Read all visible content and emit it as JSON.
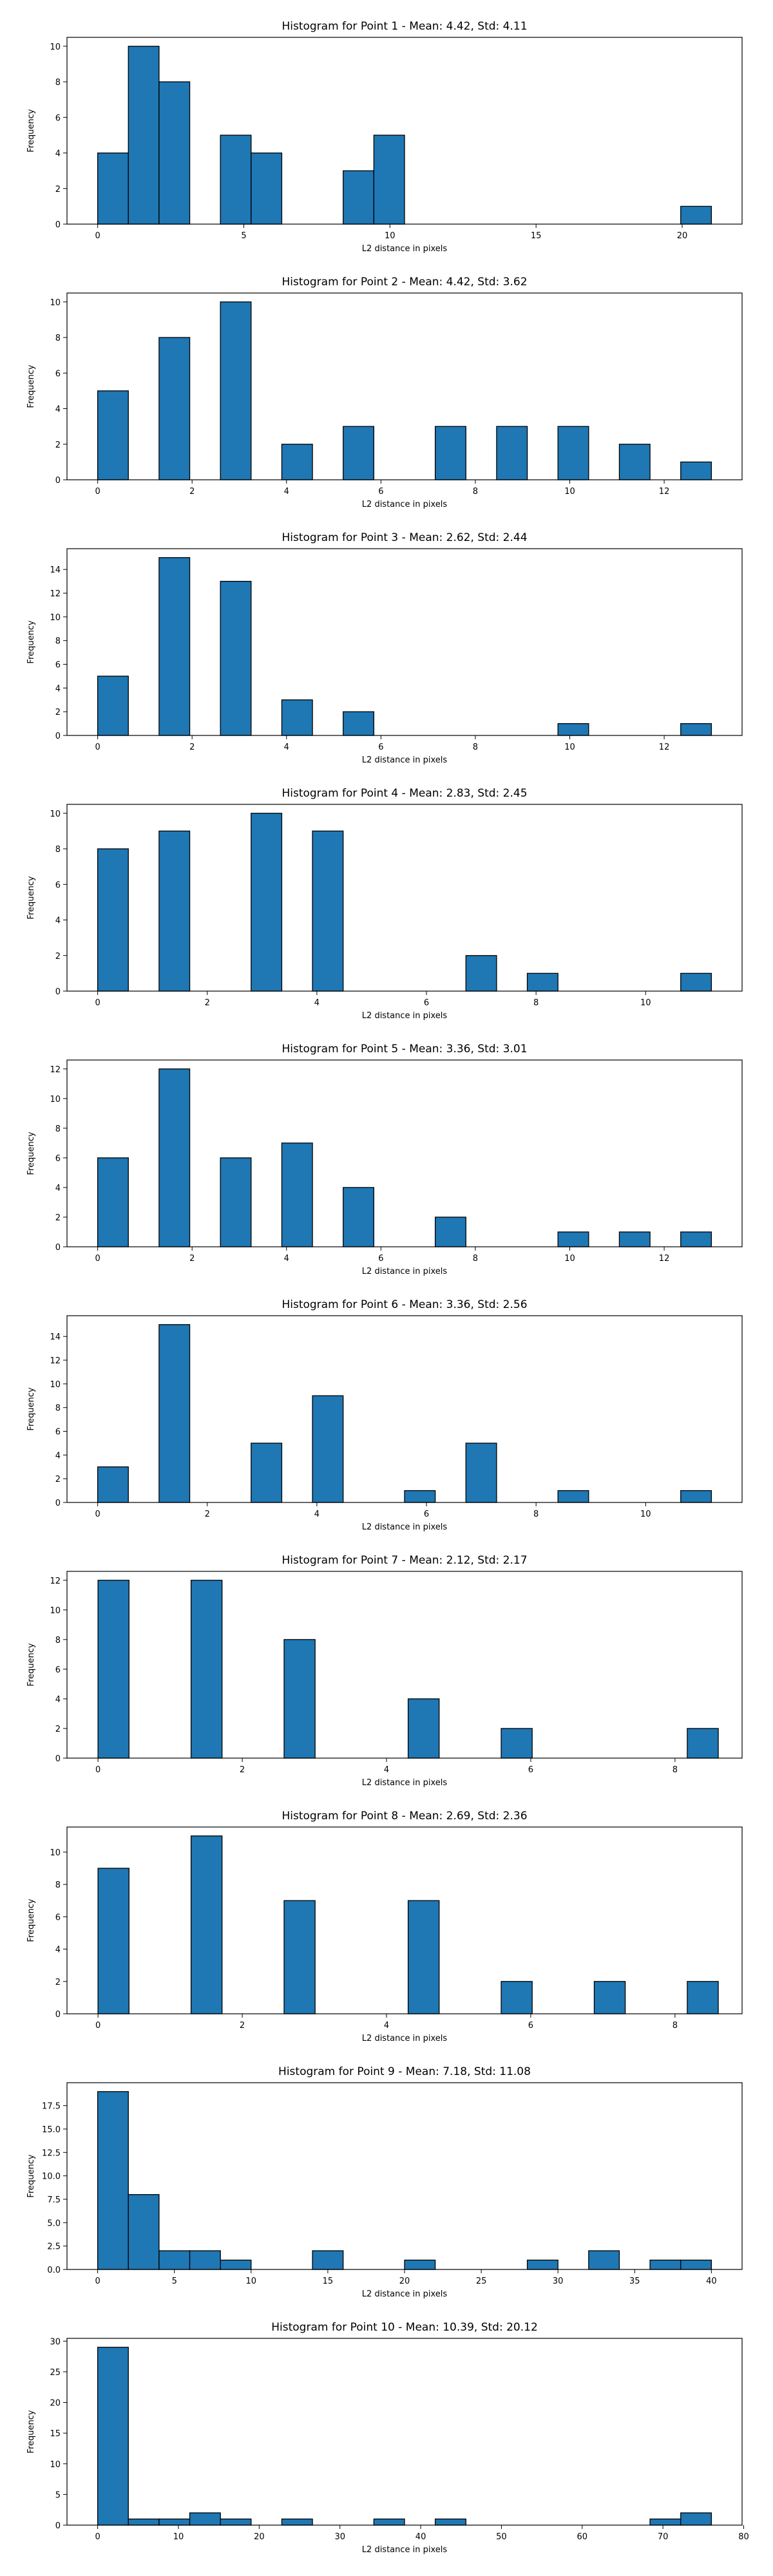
{
  "chart_data": [
    {
      "type": "bar",
      "title": "Histogram for Point 1 - Mean: 4.42, Std: 4.11",
      "xlabel": "L2 distance in pixels",
      "ylabel": "Frequency",
      "xlim": [
        -1.05,
        22.05
      ],
      "ylim": [
        0,
        10.5
      ],
      "xticks": [
        0,
        5,
        10,
        15,
        20
      ],
      "xtick_labels": [
        "0",
        "5",
        "10",
        "15",
        "20"
      ],
      "yticks": [
        0,
        2,
        4,
        6,
        8,
        10
      ],
      "ytick_labels": [
        "0",
        "2",
        "4",
        "6",
        "8",
        "10"
      ],
      "bin_width": 1.05,
      "bar_color": "#1f77b4",
      "bins": [
        {
          "x": 0,
          "count": 4
        },
        {
          "x": 1.05,
          "count": 10
        },
        {
          "x": 2.1,
          "count": 8
        },
        {
          "x": 4.2,
          "count": 5
        },
        {
          "x": 5.25,
          "count": 4
        },
        {
          "x": 8.4,
          "count": 3
        },
        {
          "x": 9.45,
          "count": 5
        },
        {
          "x": 19.95,
          "count": 1
        }
      ]
    },
    {
      "type": "bar",
      "title": "Histogram for Point 2 - Mean: 4.42, Std: 3.62",
      "xlabel": "L2 distance in pixels",
      "ylabel": "Frequency",
      "xlim": [
        -0.65,
        13.65
      ],
      "ylim": [
        0,
        10.5
      ],
      "xticks": [
        0,
        2,
        4,
        6,
        8,
        10,
        12
      ],
      "xtick_labels": [
        "0",
        "2",
        "4",
        "6",
        "8",
        "10",
        "12"
      ],
      "yticks": [
        0,
        2,
        4,
        6,
        8,
        10
      ],
      "ytick_labels": [
        "0",
        "2",
        "4",
        "6",
        "8",
        "10"
      ],
      "bin_width": 0.65,
      "bar_color": "#1f77b4",
      "bins": [
        {
          "x": 0,
          "count": 5
        },
        {
          "x": 1.3,
          "count": 8
        },
        {
          "x": 2.6,
          "count": 10
        },
        {
          "x": 3.9,
          "count": 2
        },
        {
          "x": 5.2,
          "count": 3
        },
        {
          "x": 7.15,
          "count": 3
        },
        {
          "x": 8.45,
          "count": 3
        },
        {
          "x": 9.75,
          "count": 3
        },
        {
          "x": 11.05,
          "count": 2
        },
        {
          "x": 12.35,
          "count": 1
        }
      ]
    },
    {
      "type": "bar",
      "title": "Histogram for Point 3 - Mean: 2.62, Std: 2.44",
      "xlabel": "L2 distance in pixels",
      "ylabel": "Frequency",
      "xlim": [
        -0.65,
        13.65
      ],
      "ylim": [
        0,
        15.75
      ],
      "xticks": [
        0,
        2,
        4,
        6,
        8,
        10,
        12
      ],
      "xtick_labels": [
        "0",
        "2",
        "4",
        "6",
        "8",
        "10",
        "12"
      ],
      "yticks": [
        0,
        2,
        4,
        6,
        8,
        10,
        12,
        14
      ],
      "ytick_labels": [
        "0",
        "2",
        "4",
        "6",
        "8",
        "10",
        "12",
        "14"
      ],
      "bin_width": 0.65,
      "bar_color": "#1f77b4",
      "bins": [
        {
          "x": 0,
          "count": 5
        },
        {
          "x": 1.3,
          "count": 15
        },
        {
          "x": 2.6,
          "count": 13
        },
        {
          "x": 3.9,
          "count": 3
        },
        {
          "x": 5.2,
          "count": 2
        },
        {
          "x": 9.75,
          "count": 1
        },
        {
          "x": 12.35,
          "count": 1
        }
      ]
    },
    {
      "type": "bar",
      "title": "Histogram for Point 4 - Mean: 2.83, Std: 2.45",
      "xlabel": "L2 distance in pixels",
      "ylabel": "Frequency",
      "xlim": [
        -0.56,
        11.76
      ],
      "ylim": [
        0,
        10.5
      ],
      "xticks": [
        0,
        2,
        4,
        6,
        8,
        10
      ],
      "xtick_labels": [
        "0",
        "2",
        "4",
        "6",
        "8",
        "10"
      ],
      "yticks": [
        0,
        2,
        4,
        6,
        8,
        10
      ],
      "ytick_labels": [
        "0",
        "2",
        "4",
        "6",
        "8",
        "10"
      ],
      "bin_width": 0.56,
      "bar_color": "#1f77b4",
      "bins": [
        {
          "x": 0,
          "count": 8
        },
        {
          "x": 1.12,
          "count": 9
        },
        {
          "x": 2.8,
          "count": 10
        },
        {
          "x": 3.92,
          "count": 9
        },
        {
          "x": 6.72,
          "count": 2
        },
        {
          "x": 7.84,
          "count": 1
        },
        {
          "x": 10.64,
          "count": 1
        }
      ]
    },
    {
      "type": "bar",
      "title": "Histogram for Point 5 - Mean: 3.36, Std: 3.01",
      "xlabel": "L2 distance in pixels",
      "ylabel": "Frequency",
      "xlim": [
        -0.65,
        13.65
      ],
      "ylim": [
        0,
        12.6
      ],
      "xticks": [
        0,
        2,
        4,
        6,
        8,
        10,
        12
      ],
      "xtick_labels": [
        "0",
        "2",
        "4",
        "6",
        "8",
        "10",
        "12"
      ],
      "yticks": [
        0,
        2,
        4,
        6,
        8,
        10,
        12
      ],
      "ytick_labels": [
        "0",
        "2",
        "4",
        "6",
        "8",
        "10",
        "12"
      ],
      "bin_width": 0.65,
      "bar_color": "#1f77b4",
      "bins": [
        {
          "x": 0,
          "count": 6
        },
        {
          "x": 1.3,
          "count": 12
        },
        {
          "x": 2.6,
          "count": 6
        },
        {
          "x": 3.9,
          "count": 7
        },
        {
          "x": 5.2,
          "count": 4
        },
        {
          "x": 7.15,
          "count": 2
        },
        {
          "x": 9.75,
          "count": 1
        },
        {
          "x": 11.05,
          "count": 1
        },
        {
          "x": 12.35,
          "count": 1
        }
      ]
    },
    {
      "type": "bar",
      "title": "Histogram for Point 6 - Mean: 3.36, Std: 2.56",
      "xlabel": "L2 distance in pixels",
      "ylabel": "Frequency",
      "xlim": [
        -0.56,
        11.76
      ],
      "ylim": [
        0,
        15.75
      ],
      "xticks": [
        0,
        2,
        4,
        6,
        8,
        10
      ],
      "xtick_labels": [
        "0",
        "2",
        "4",
        "6",
        "8",
        "10"
      ],
      "yticks": [
        0,
        2,
        4,
        6,
        8,
        10,
        12,
        14
      ],
      "ytick_labels": [
        "0",
        "2",
        "4",
        "6",
        "8",
        "10",
        "12",
        "14"
      ],
      "bin_width": 0.56,
      "bar_color": "#1f77b4",
      "bins": [
        {
          "x": 0,
          "count": 3
        },
        {
          "x": 1.12,
          "count": 15
        },
        {
          "x": 2.8,
          "count": 5
        },
        {
          "x": 3.92,
          "count": 9
        },
        {
          "x": 5.6,
          "count": 1
        },
        {
          "x": 6.72,
          "count": 5
        },
        {
          "x": 8.4,
          "count": 1
        },
        {
          "x": 10.64,
          "count": 1
        }
      ]
    },
    {
      "type": "bar",
      "title": "Histogram for Point 7 - Mean: 2.12, Std: 2.17",
      "xlabel": "L2 distance in pixels",
      "ylabel": "Frequency",
      "xlim": [
        -0.43,
        8.93
      ],
      "ylim": [
        0,
        12.6
      ],
      "xticks": [
        0,
        2,
        4,
        6,
        8
      ],
      "xtick_labels": [
        "0",
        "2",
        "4",
        "6",
        "8"
      ],
      "yticks": [
        0,
        2,
        4,
        6,
        8,
        10,
        12
      ],
      "ytick_labels": [
        "0",
        "2",
        "4",
        "6",
        "8",
        "10",
        "12"
      ],
      "bin_width": 0.43,
      "bar_color": "#1f77b4",
      "bins": [
        {
          "x": 0,
          "count": 12
        },
        {
          "x": 1.29,
          "count": 12
        },
        {
          "x": 2.58,
          "count": 8
        },
        {
          "x": 4.3,
          "count": 4
        },
        {
          "x": 5.59,
          "count": 2
        },
        {
          "x": 8.17,
          "count": 2
        }
      ]
    },
    {
      "type": "bar",
      "title": "Histogram for Point 8 - Mean: 2.69, Std: 2.36",
      "xlabel": "L2 distance in pixels",
      "ylabel": "Frequency",
      "xlim": [
        -0.43,
        8.93
      ],
      "ylim": [
        0,
        11.55
      ],
      "xticks": [
        0,
        2,
        4,
        6,
        8
      ],
      "xtick_labels": [
        "0",
        "2",
        "4",
        "6",
        "8"
      ],
      "yticks": [
        0,
        2,
        4,
        6,
        8,
        10
      ],
      "ytick_labels": [
        "0",
        "2",
        "4",
        "6",
        "8",
        "10"
      ],
      "bin_width": 0.43,
      "bar_color": "#1f77b4",
      "bins": [
        {
          "x": 0,
          "count": 9
        },
        {
          "x": 1.29,
          "count": 11
        },
        {
          "x": 2.58,
          "count": 7
        },
        {
          "x": 4.3,
          "count": 7
        },
        {
          "x": 5.59,
          "count": 2
        },
        {
          "x": 6.88,
          "count": 2
        },
        {
          "x": 8.17,
          "count": 2
        }
      ]
    },
    {
      "type": "bar",
      "title": "Histogram for Point 9 - Mean: 7.18, Std: 11.08",
      "xlabel": "L2 distance in pixels",
      "ylabel": "Frequency",
      "xlim": [
        -2.0,
        42.0
      ],
      "ylim": [
        0,
        19.95
      ],
      "xticks": [
        0,
        5,
        10,
        15,
        20,
        25,
        30,
        35,
        40
      ],
      "xtick_labels": [
        "0",
        "5",
        "10",
        "15",
        "20",
        "25",
        "30",
        "35",
        "40"
      ],
      "yticks": [
        0,
        2.5,
        5,
        7.5,
        10,
        12.5,
        15,
        17.5
      ],
      "ytick_labels": [
        "0.0",
        "2.5",
        "5.0",
        "7.5",
        "10.0",
        "12.5",
        "15.0",
        "17.5"
      ],
      "bin_width": 2.0,
      "bar_color": "#1f77b4",
      "bins": [
        {
          "x": 0,
          "count": 19
        },
        {
          "x": 2,
          "count": 8
        },
        {
          "x": 4,
          "count": 2
        },
        {
          "x": 6,
          "count": 2
        },
        {
          "x": 8,
          "count": 1
        },
        {
          "x": 14,
          "count": 2
        },
        {
          "x": 20,
          "count": 1
        },
        {
          "x": 28,
          "count": 1
        },
        {
          "x": 32,
          "count": 2
        },
        {
          "x": 36,
          "count": 1
        },
        {
          "x": 38,
          "count": 1
        }
      ]
    },
    {
      "type": "bar",
      "title": "Histogram for Point 10 - Mean: 10.39, Std: 20.12",
      "xlabel": "L2 distance in pixels",
      "ylabel": "Frequency",
      "xlim": [
        -3.8,
        79.8
      ],
      "ylim": [
        0,
        30.45
      ],
      "xticks": [
        0,
        10,
        20,
        30,
        40,
        50,
        60,
        70,
        80
      ],
      "xtick_labels": [
        "0",
        "10",
        "20",
        "30",
        "40",
        "50",
        "60",
        "70",
        "80"
      ],
      "yticks": [
        0,
        5,
        10,
        15,
        20,
        25,
        30
      ],
      "ytick_labels": [
        "0",
        "5",
        "10",
        "15",
        "20",
        "25",
        "30"
      ],
      "bin_width": 3.8,
      "bar_color": "#1f77b4",
      "bins": [
        {
          "x": 0,
          "count": 29
        },
        {
          "x": 3.8,
          "count": 1
        },
        {
          "x": 7.6,
          "count": 1
        },
        {
          "x": 11.4,
          "count": 2
        },
        {
          "x": 15.2,
          "count": 1
        },
        {
          "x": 22.8,
          "count": 1
        },
        {
          "x": 34.2,
          "count": 1
        },
        {
          "x": 41.8,
          "count": 1
        },
        {
          "x": 68.4,
          "count": 1
        },
        {
          "x": 72.2,
          "count": 2
        }
      ]
    }
  ]
}
